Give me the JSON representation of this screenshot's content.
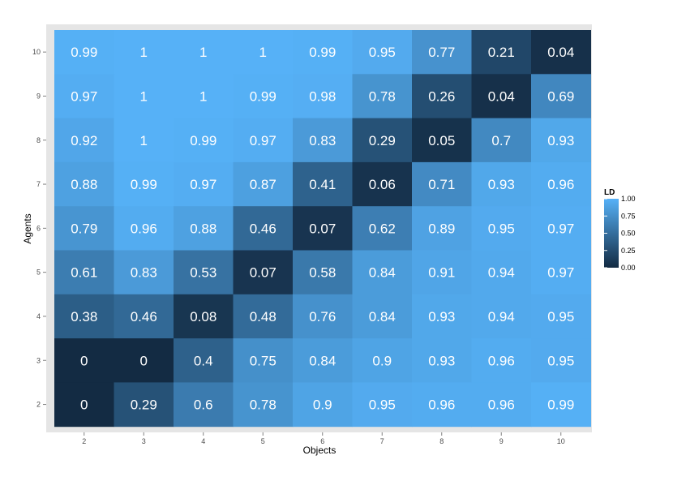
{
  "chart_data": {
    "type": "heatmap",
    "x": [
      2,
      3,
      4,
      5,
      6,
      7,
      8,
      9,
      10
    ],
    "y": [
      2,
      3,
      4,
      5,
      6,
      7,
      8,
      9,
      10
    ],
    "xlabel": "Objects",
    "ylabel": "Agents",
    "value_rows_by_agent": [
      {
        "agent": 10,
        "values": [
          0.99,
          1,
          1,
          1,
          0.99,
          0.95,
          0.77,
          0.21,
          0.04
        ]
      },
      {
        "agent": 9,
        "values": [
          0.97,
          1,
          1,
          0.99,
          0.98,
          0.78,
          0.26,
          0.04,
          0.69
        ]
      },
      {
        "agent": 8,
        "values": [
          0.92,
          1,
          0.99,
          0.97,
          0.83,
          0.29,
          0.05,
          0.7,
          0.93
        ]
      },
      {
        "agent": 7,
        "values": [
          0.88,
          0.99,
          0.97,
          0.87,
          0.41,
          0.06,
          0.71,
          0.93,
          0.96
        ]
      },
      {
        "agent": 6,
        "values": [
          0.79,
          0.96,
          0.88,
          0.46,
          0.07,
          0.62,
          0.89,
          0.95,
          0.97
        ]
      },
      {
        "agent": 5,
        "values": [
          0.61,
          0.83,
          0.53,
          0.07,
          0.58,
          0.84,
          0.91,
          0.94,
          0.97
        ]
      },
      {
        "agent": 4,
        "values": [
          0.38,
          0.46,
          0.08,
          0.48,
          0.76,
          0.84,
          0.93,
          0.94,
          0.95
        ]
      },
      {
        "agent": 3,
        "values": [
          0,
          0,
          0.4,
          0.75,
          0.84,
          0.9,
          0.93,
          0.96,
          0.95
        ]
      },
      {
        "agent": 2,
        "values": [
          0,
          0.29,
          0.6,
          0.78,
          0.9,
          0.95,
          0.96,
          0.96,
          0.99
        ]
      }
    ],
    "legend": {
      "title": "LD",
      "placement": "right",
      "breaks": [
        "1.00",
        "0.75",
        "0.50",
        "0.25",
        "0.00"
      ],
      "low_color": "#132B43",
      "high_color": "#56B1F7",
      "range": [
        0,
        1
      ]
    },
    "panel_background": "#e5e5e5",
    "grid": false
  }
}
